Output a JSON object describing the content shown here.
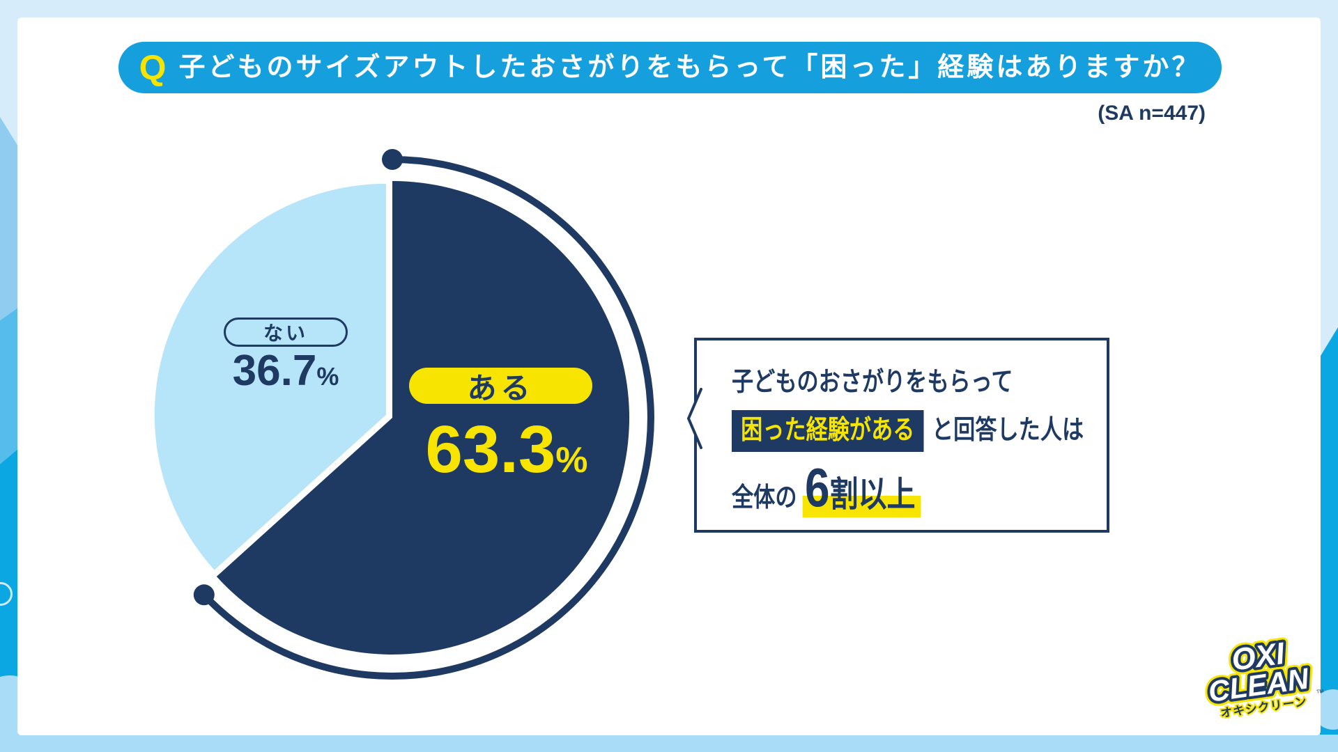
{
  "colors": {
    "navy": "#1e3a63",
    "yellow": "#f7e400",
    "blue": "#169fdd",
    "pielight": "#b6e4f9",
    "light": "#d7ecfa",
    "mid1": "#8fccef",
    "mid2": "#55bcec",
    "cyan": "#0aa7e2",
    "band": "#a9dcf6"
  },
  "banner": {
    "q": "Q",
    "title": "子どものサイズアウトしたおさがりをもらって「困った」経験はありますか？"
  },
  "sample_note": "(SA n=447)",
  "chart_data": {
    "type": "pie",
    "title": "子どものサイズアウトしたおさがりをもらって「困った」経験はありますか？",
    "sample": "SA n=447",
    "categories": [
      "ある",
      "ない"
    ],
    "values": [
      63.3,
      36.7
    ],
    "unit": "%",
    "start_angle_deg": 0,
    "direction": "clockwise",
    "colors": {
      "ある": "#1e3a63",
      "ない": "#b6e4f9"
    },
    "points": [
      {
        "label": "ある",
        "value": "63.3",
        "unit": "%"
      },
      {
        "label": "ない",
        "value": "36.7",
        "unit": "%"
      }
    ]
  },
  "callout": {
    "line1": "子どものおさがりをもらって",
    "highlight": "困った経験がある",
    "line2_rest": "と回答した人は",
    "line3_prefix": "全体の",
    "line3_number": "6",
    "line3_suffix": "割以上"
  },
  "logo": {
    "line1": "OXI",
    "line2": "CLEAN",
    "subtitle": "オキシクリーン",
    "tm": "TM"
  }
}
